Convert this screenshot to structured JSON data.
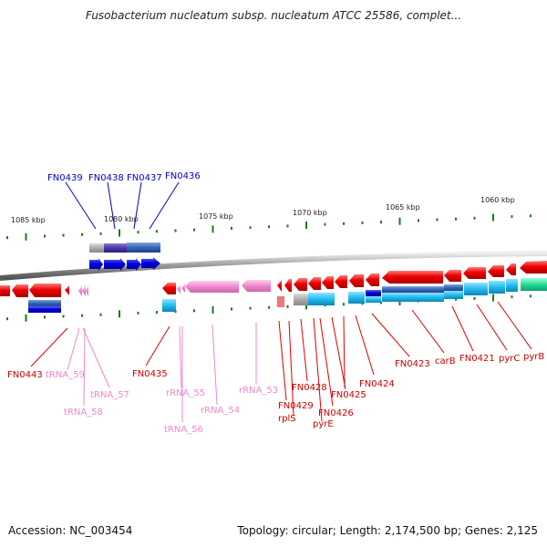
{
  "title": "Fusobacterium nucleatum subsp. nucleatum ATCC 25586, complet...",
  "footer": {
    "accession": "Accession: NC_003454",
    "topology": "Topology: circular; Length: 2,174,500 bp; Genes: 2,125"
  },
  "colors": {
    "forward_gene": "#0000e0",
    "reverse_gene": "#ee0000",
    "rna_gene": "#ee88cc",
    "cds_forward": "#3366bb",
    "cds_reverse": "#22bbee",
    "backbone": "#999999",
    "tick": "#1a7a1a"
  },
  "scale": {
    "unit": "kbp",
    "direction": "decreasing left-to-right",
    "ticks": [
      "1085 kbp",
      "1080 kbp",
      "1075 kbp",
      "1070 kbp",
      "1065 kbp",
      "1060 kbp"
    ]
  },
  "top_labels": [
    "FN0439",
    "FN0438",
    "FN0437",
    "FN0436"
  ],
  "bottom_labels": [
    {
      "text": "FN0443",
      "kind": "gene"
    },
    {
      "text": "tRNA_59",
      "kind": "rna"
    },
    {
      "text": "tRNA_57",
      "kind": "rna"
    },
    {
      "text": "tRNA_58",
      "kind": "rna"
    },
    {
      "text": "FN0435",
      "kind": "gene"
    },
    {
      "text": "rRNA_55",
      "kind": "rna"
    },
    {
      "text": "tRNA_56",
      "kind": "rna"
    },
    {
      "text": "rRNA_54",
      "kind": "rna"
    },
    {
      "text": "rRNA_53",
      "kind": "rna"
    },
    {
      "text": "FN0429",
      "kind": "gene"
    },
    {
      "text": "rplS",
      "kind": "gene"
    },
    {
      "text": "FN0428",
      "kind": "gene"
    },
    {
      "text": "pyrE",
      "kind": "gene"
    },
    {
      "text": "FN0426",
      "kind": "gene"
    },
    {
      "text": "FN0425",
      "kind": "gene"
    },
    {
      "text": "FN0424",
      "kind": "gene"
    },
    {
      "text": "FN0423",
      "kind": "gene"
    },
    {
      "text": "carB",
      "kind": "gene"
    },
    {
      "text": "FN0421",
      "kind": "gene"
    },
    {
      "text": "pyrC",
      "kind": "gene"
    },
    {
      "text": "pyrB",
      "kind": "gene"
    }
  ]
}
